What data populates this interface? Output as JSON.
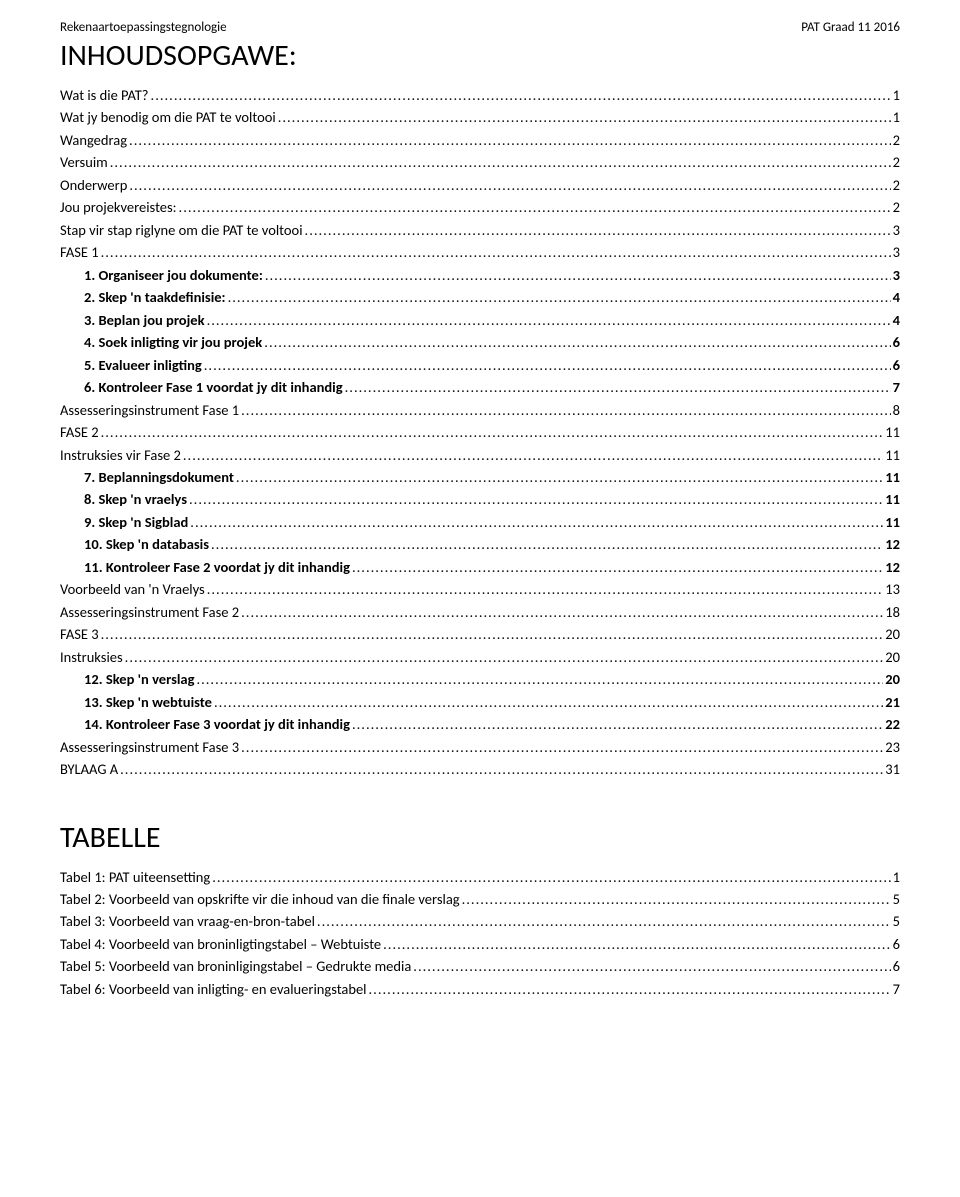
{
  "header": {
    "left": "Rekenaartoepassingstegnologie",
    "right": "PAT Graad 11 2016"
  },
  "title": "INHOUDSOPGAWE:",
  "toc": [
    {
      "label": "Wat is die PAT?",
      "page": "1",
      "indent": 0,
      "bold": false
    },
    {
      "label": "Wat jy benodig om die PAT te voltooi",
      "page": "1",
      "indent": 0,
      "bold": false
    },
    {
      "label": "Wangedrag",
      "page": "2",
      "indent": 0,
      "bold": false
    },
    {
      "label": "Versuim",
      "page": "2",
      "indent": 0,
      "bold": false
    },
    {
      "label": "Onderwerp",
      "page": "2",
      "indent": 0,
      "bold": false
    },
    {
      "label": "Jou projekvereistes:",
      "page": "2",
      "indent": 0,
      "bold": false
    },
    {
      "label": "Stap vir stap riglyne om die PAT te voltooi",
      "page": "3",
      "indent": 0,
      "bold": false
    },
    {
      "label": "FASE 1",
      "page": "3",
      "indent": 0,
      "bold": false
    },
    {
      "label": "1.    Organiseer jou dokumente:",
      "page": "3",
      "indent": 1,
      "bold": true
    },
    {
      "label": "2.    Skep 'n taakdefinisie:",
      "page": "4",
      "indent": 1,
      "bold": true
    },
    {
      "label": "3.    Beplan jou projek",
      "page": "4",
      "indent": 1,
      "bold": true
    },
    {
      "label": "4.    Soek inligting vir jou projek",
      "page": "6",
      "indent": 1,
      "bold": true
    },
    {
      "label": "5.    Evalueer inligting",
      "page": "6",
      "indent": 1,
      "bold": true
    },
    {
      "label": "6.    Kontroleer Fase 1 voordat jy dit inhandig",
      "page": "7",
      "indent": 1,
      "bold": true
    },
    {
      "label": "Assesseringsinstrument Fase 1",
      "page": "8",
      "indent": 0,
      "bold": false
    },
    {
      "label": "FASE 2",
      "page": "11",
      "indent": 0,
      "bold": false
    },
    {
      "label": "Instruksies vir Fase 2",
      "page": "11",
      "indent": 0,
      "bold": false
    },
    {
      "label": "7.    Beplanningsdokument",
      "page": "11",
      "indent": 1,
      "bold": true
    },
    {
      "label": "8.    Skep 'n vraelys",
      "page": "11",
      "indent": 1,
      "bold": true
    },
    {
      "label": "9.    Skep 'n Sigblad",
      "page": "11",
      "indent": 1,
      "bold": true
    },
    {
      "label": "10.  Skep 'n databasis",
      "page": "12",
      "indent": 1,
      "bold": true
    },
    {
      "label": "11.  Kontroleer Fase 2 voordat jy dit inhandig",
      "page": "12",
      "indent": 1,
      "bold": true
    },
    {
      "label": "Voorbeeld van 'n Vraelys",
      "page": "13",
      "indent": 0,
      "bold": false
    },
    {
      "label": "Assesseringsinstrument Fase 2",
      "page": "18",
      "indent": 0,
      "bold": false
    },
    {
      "label": "FASE 3",
      "page": "20",
      "indent": 0,
      "bold": false
    },
    {
      "label": "Instruksies",
      "page": "20",
      "indent": 0,
      "bold": false
    },
    {
      "label": "12.  Skep 'n verslag",
      "page": "20",
      "indent": 1,
      "bold": true
    },
    {
      "label": "13.  Skep 'n webtuiste",
      "page": "21",
      "indent": 1,
      "bold": true
    },
    {
      "label": "14.  Kontroleer Fase 3 voordat jy dit inhandig",
      "page": "22",
      "indent": 1,
      "bold": true
    },
    {
      "label": "Assesseringsinstrument Fase 3",
      "page": "23",
      "indent": 0,
      "bold": false
    },
    {
      "label": "BYLAAG A",
      "page": "31",
      "indent": 0,
      "bold": false
    }
  ],
  "tables_title": "TABELLE",
  "tables": [
    {
      "label": "Tabel 1: PAT uiteensetting",
      "page": "1"
    },
    {
      "label": "Tabel 2: Voorbeeld van opskrifte vir die inhoud van die finale verslag",
      "page": "5"
    },
    {
      "label": "Tabel 3: Voorbeeld van vraag-en-bron-tabel",
      "page": "5"
    },
    {
      "label": "Tabel 4: Voorbeeld van broninligtingstabel – Webtuiste",
      "page": "6"
    },
    {
      "label": "Tabel 5: Voorbeeld van broninligingstabel – Gedrukte media",
      "page": "6"
    },
    {
      "label": "Tabel 6: Voorbeeld van inligting- en evalueringstabel",
      "page": "7"
    }
  ]
}
